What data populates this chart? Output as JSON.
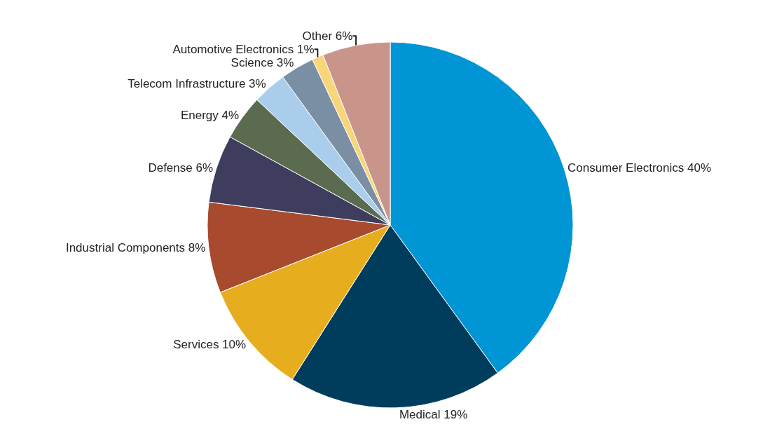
{
  "chart_data": {
    "type": "pie",
    "categories": [
      "Consumer Electronics",
      "Medical",
      "Services",
      "Industrial Components",
      "Defense",
      "Energy",
      "Telecom Infrastructure",
      "Science",
      "Automotive Electronics",
      "Other"
    ],
    "values": [
      40,
      19,
      10,
      8,
      6,
      4,
      3,
      3,
      1,
      6
    ],
    "value_labels": [
      "40%",
      "19%",
      "10%",
      "8%",
      "6%",
      "4%",
      "3%",
      "3%",
      "1%",
      "6%"
    ],
    "colors": [
      "#0095d5",
      "#003d5c",
      "#e6ae1e",
      "#a84a2e",
      "#3f3d5e",
      "#5b6b4f",
      "#a9cdeb",
      "#7a8fa3",
      "#f9d57a",
      "#c9958a"
    ],
    "legend": false
  }
}
